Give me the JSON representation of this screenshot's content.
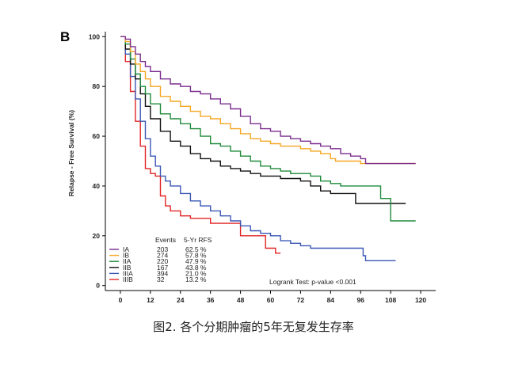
{
  "panel_letter": "B",
  "caption": "图2. 各个分期肿瘤的5年无复发生存率",
  "colors": {
    "IA": "#7b2d8e",
    "IB": "#f5a623",
    "IIA": "#1f8a3a",
    "IIB": "#111111",
    "IIIA": "#3a57b5",
    "IIIB": "#e02424"
  },
  "chart_data": {
    "type": "line",
    "title": "",
    "xlabel": "",
    "ylabel": "Relapse - Free Survival (%)",
    "xlim": [
      -6,
      126
    ],
    "ylim": [
      -2,
      102
    ],
    "xticks": [
      0,
      12,
      24,
      36,
      48,
      60,
      72,
      84,
      96,
      108,
      120
    ],
    "yticks": [
      0,
      20,
      40,
      60,
      80,
      100
    ],
    "legend": {
      "position": "bottom-left",
      "events_header": "Events",
      "rfs_header": "5-Yr RFS"
    },
    "annotation": "Logrank Test: p-value <0.001",
    "series": [
      {
        "name": "IA",
        "events": "203",
        "rfs": "62.5 %",
        "points": [
          [
            0,
            100
          ],
          [
            2,
            99
          ],
          [
            4,
            96
          ],
          [
            6,
            93
          ],
          [
            8,
            90
          ],
          [
            10,
            88
          ],
          [
            12,
            86
          ],
          [
            16,
            83
          ],
          [
            20,
            81
          ],
          [
            24,
            80
          ],
          [
            28,
            78
          ],
          [
            32,
            77
          ],
          [
            36,
            75
          ],
          [
            40,
            73
          ],
          [
            44,
            71
          ],
          [
            48,
            68
          ],
          [
            52,
            65
          ],
          [
            56,
            63
          ],
          [
            60,
            62
          ],
          [
            64,
            60
          ],
          [
            68,
            59
          ],
          [
            72,
            58
          ],
          [
            76,
            57
          ],
          [
            80,
            56
          ],
          [
            84,
            55
          ],
          [
            88,
            53
          ],
          [
            92,
            52
          ],
          [
            96,
            51
          ],
          [
            98,
            49
          ],
          [
            108,
            49
          ],
          [
            118,
            49
          ]
        ]
      },
      {
        "name": "IB",
        "events": "274",
        "rfs": "57.8 %",
        "points": [
          [
            0,
            100
          ],
          [
            2,
            98
          ],
          [
            4,
            94
          ],
          [
            6,
            89
          ],
          [
            8,
            86
          ],
          [
            10,
            83
          ],
          [
            12,
            80
          ],
          [
            16,
            76
          ],
          [
            20,
            74
          ],
          [
            24,
            72
          ],
          [
            28,
            70
          ],
          [
            32,
            68
          ],
          [
            36,
            67
          ],
          [
            40,
            65
          ],
          [
            44,
            63
          ],
          [
            48,
            61
          ],
          [
            52,
            59
          ],
          [
            56,
            58
          ],
          [
            60,
            57
          ],
          [
            64,
            56
          ],
          [
            68,
            56
          ],
          [
            72,
            55
          ],
          [
            76,
            54
          ],
          [
            80,
            53
          ],
          [
            84,
            51
          ],
          [
            86,
            50
          ],
          [
            90,
            50
          ],
          [
            96,
            49
          ],
          [
            108,
            49
          ],
          [
            118,
            49
          ]
        ]
      },
      {
        "name": "IIA",
        "events": "220",
        "rfs": "47.9 %",
        "points": [
          [
            0,
            100
          ],
          [
            2,
            97
          ],
          [
            4,
            91
          ],
          [
            6,
            85
          ],
          [
            8,
            80
          ],
          [
            10,
            77
          ],
          [
            12,
            73
          ],
          [
            16,
            69
          ],
          [
            20,
            67
          ],
          [
            24,
            65
          ],
          [
            28,
            63
          ],
          [
            32,
            60
          ],
          [
            36,
            57
          ],
          [
            40,
            56
          ],
          [
            44,
            54
          ],
          [
            48,
            52
          ],
          [
            52,
            50
          ],
          [
            56,
            48
          ],
          [
            60,
            47
          ],
          [
            64,
            46
          ],
          [
            68,
            45
          ],
          [
            72,
            45
          ],
          [
            76,
            44
          ],
          [
            80,
            42
          ],
          [
            84,
            41
          ],
          [
            88,
            40
          ],
          [
            92,
            40
          ],
          [
            96,
            40
          ],
          [
            102,
            40
          ],
          [
            104,
            35
          ],
          [
            107,
            35
          ],
          [
            108,
            26
          ],
          [
            118,
            26
          ]
        ]
      },
      {
        "name": "IIB",
        "events": "167",
        "rfs": "43.8 %",
        "points": [
          [
            0,
            100
          ],
          [
            2,
            95
          ],
          [
            4,
            89
          ],
          [
            6,
            83
          ],
          [
            8,
            77
          ],
          [
            10,
            72
          ],
          [
            12,
            67
          ],
          [
            16,
            62
          ],
          [
            20,
            58
          ],
          [
            24,
            56
          ],
          [
            28,
            53
          ],
          [
            32,
            51
          ],
          [
            36,
            50
          ],
          [
            40,
            48
          ],
          [
            44,
            47
          ],
          [
            48,
            46
          ],
          [
            52,
            45
          ],
          [
            56,
            44
          ],
          [
            60,
            44
          ],
          [
            64,
            43
          ],
          [
            68,
            43
          ],
          [
            72,
            42
          ],
          [
            76,
            40
          ],
          [
            80,
            38
          ],
          [
            84,
            37
          ],
          [
            88,
            37
          ],
          [
            94,
            37
          ],
          [
            94,
            33
          ],
          [
            100,
            33
          ],
          [
            110,
            33
          ],
          [
            114,
            33
          ]
        ]
      },
      {
        "name": "IIIA",
        "events": "394",
        "rfs": "21.0 %",
        "points": [
          [
            0,
            100
          ],
          [
            2,
            93
          ],
          [
            4,
            84
          ],
          [
            6,
            75
          ],
          [
            8,
            66
          ],
          [
            10,
            59
          ],
          [
            12,
            52
          ],
          [
            14,
            48
          ],
          [
            16,
            44
          ],
          [
            18,
            42
          ],
          [
            20,
            40
          ],
          [
            24,
            37
          ],
          [
            28,
            34
          ],
          [
            32,
            32
          ],
          [
            36,
            30
          ],
          [
            40,
            28
          ],
          [
            44,
            26
          ],
          [
            48,
            24
          ],
          [
            52,
            22
          ],
          [
            56,
            21
          ],
          [
            60,
            20
          ],
          [
            64,
            18
          ],
          [
            68,
            17
          ],
          [
            72,
            16
          ],
          [
            76,
            15
          ],
          [
            84,
            15
          ],
          [
            90,
            15
          ],
          [
            96,
            15
          ],
          [
            97,
            12
          ],
          [
            98,
            10
          ],
          [
            104,
            10
          ],
          [
            110,
            10
          ]
        ]
      },
      {
        "name": "IIIB",
        "events": "32",
        "rfs": "13.2 %",
        "points": [
          [
            0,
            100
          ],
          [
            2,
            90
          ],
          [
            4,
            78
          ],
          [
            6,
            66
          ],
          [
            8,
            56
          ],
          [
            10,
            47
          ],
          [
            12,
            45
          ],
          [
            14,
            44
          ],
          [
            16,
            36
          ],
          [
            18,
            32
          ],
          [
            20,
            30
          ],
          [
            24,
            28
          ],
          [
            28,
            27
          ],
          [
            32,
            27
          ],
          [
            36,
            25
          ],
          [
            40,
            25
          ],
          [
            48,
            20
          ],
          [
            56,
            20
          ],
          [
            58,
            15
          ],
          [
            60,
            15
          ],
          [
            62,
            13
          ],
          [
            64,
            13
          ]
        ]
      }
    ]
  }
}
